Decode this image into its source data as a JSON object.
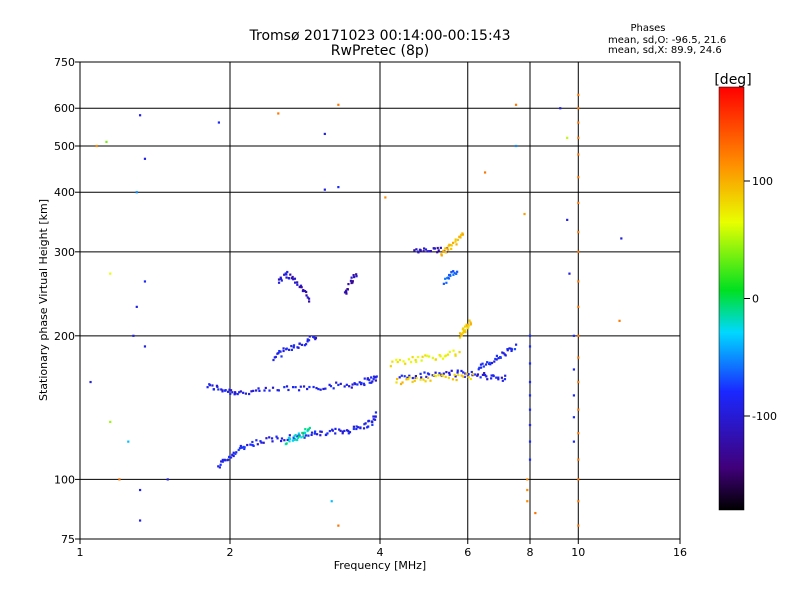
{
  "chart_data": {
    "type": "scatter",
    "title": "Tromsø 20171023 00:14:00-00:15:43",
    "subtitle": "RwPretec (8p)",
    "xlabel": "Frequency [MHz]",
    "ylabel": "Stationary phase Virtual Height [km]",
    "x_scale": "log",
    "y_scale": "log",
    "xlim": [
      1,
      16
    ],
    "ylim": [
      75,
      750
    ],
    "x_ticks": [
      1,
      2,
      4,
      6,
      8,
      10,
      16
    ],
    "y_ticks": [
      75,
      100,
      200,
      300,
      400,
      500,
      600,
      750
    ],
    "grid": true,
    "stats": {
      "heading": "Phases",
      "o_line": "mean, sd,O: -96.5, 21.6",
      "x_line": "mean, sd,X: 89.9, 24.6"
    },
    "colorbar": {
      "label": "[deg]",
      "range": [
        -180,
        180
      ],
      "ticks": [
        100,
        0,
        -100
      ]
    },
    "colors": {
      "blue": "#1a28ff",
      "navy": "#2a0bb0",
      "cyan": "#00c8e6",
      "green": "#18e018",
      "yellow": "#e6e600",
      "orange": "#ffa000",
      "red": "#e00000"
    },
    "series": [
      {
        "traces": [
          {
            "x": [
              1.8,
              1.9,
              2.0,
              2.1,
              2.3,
              2.6,
              2.9,
              3.2,
              3.5,
              3.7,
              3.85,
              3.95
            ],
            "y": [
              157,
              155,
              153,
              152,
              153,
              155,
              156,
              157,
              158,
              160,
              162,
              163
            ],
            "phase": -110
          },
          {
            "x": [
              1.9,
              1.97,
              2.05,
              2.15,
              2.3,
              2.5,
              2.7,
              2.9,
              3.1,
              3.3,
              3.5,
              3.7,
              3.85,
              3.95
            ],
            "y": [
              107,
              110,
              114,
              118,
              120,
              122,
              123,
              124,
              125,
              126,
              127,
              129,
              132,
              137
            ],
            "phase": -105
          },
          {
            "x": [
              2.45,
              2.55,
              2.7,
              2.85,
              3.0
            ],
            "y": [
              180,
              185,
              190,
              195,
              200
            ],
            "phase": -110
          },
          {
            "x": [
              2.5,
              2.6,
              2.7,
              2.8,
              2.9
            ],
            "y": [
              260,
              270,
              262,
              250,
              235
            ],
            "phase": -120
          },
          {
            "x": [
              3.4,
              3.5,
              3.6
            ],
            "y": [
              245,
              260,
              270
            ],
            "phase": -130
          },
          {
            "x": [
              4.4,
              4.8,
              5.2,
              5.6,
              6.0,
              6.4,
              6.8,
              7.2
            ],
            "y": [
              164,
              165,
              166,
              167,
              166,
              165,
              164,
              163
            ],
            "phase": -110
          },
          {
            "x": [
              6.3,
              6.6,
              6.9,
              7.2,
              7.5
            ],
            "y": [
              170,
              175,
              180,
              185,
              190
            ],
            "phase": -100
          },
          {
            "x": [
              4.7,
              4.95,
              5.2,
              5.5
            ],
            "y": [
              300,
              302,
              301,
              304
            ],
            "phase": -125
          },
          {
            "x": [
              5.4,
              5.55,
              5.7
            ],
            "y": [
              260,
              270,
              275
            ],
            "phase": -80
          },
          {
            "x": [
              4.2,
              4.6,
              5.0,
              5.4,
              5.8
            ],
            "y": [
              175,
              178,
              180,
              182,
              185
            ],
            "phase": 70
          },
          {
            "x": [
              4.3,
              4.7,
              5.2,
              5.7,
              6.2
            ],
            "y": [
              160,
              162,
              163,
              164,
              165
            ],
            "phase": 85
          },
          {
            "x": [
              5.3,
              5.5,
              5.7,
              5.9
            ],
            "y": [
              295,
              305,
              315,
              330
            ],
            "phase": 95
          },
          {
            "x": [
              5.8,
              5.9,
              6.0,
              6.1
            ],
            "y": [
              200,
              205,
              210,
              215
            ],
            "phase": 90
          },
          {
            "x": [
              2.6,
              2.7,
              2.8,
              2.9
            ],
            "y": [
              120,
              122,
              125,
              128
            ],
            "phase": -20
          }
        ],
        "points": [
          {
            "x": 1.08,
            "y": 500,
            "phase": 120
          },
          {
            "x": 1.13,
            "y": 510,
            "phase": 30
          },
          {
            "x": 1.15,
            "y": 270,
            "phase": 60
          },
          {
            "x": 1.32,
            "y": 580,
            "phase": -110
          },
          {
            "x": 1.35,
            "y": 470,
            "phase": -110
          },
          {
            "x": 1.3,
            "y": 400,
            "phase": -60
          },
          {
            "x": 1.35,
            "y": 260,
            "phase": -100
          },
          {
            "x": 1.3,
            "y": 230,
            "phase": -110
          },
          {
            "x": 1.28,
            "y": 200,
            "phase": -110
          },
          {
            "x": 1.35,
            "y": 190,
            "phase": -110
          },
          {
            "x": 1.05,
            "y": 160,
            "phase": -110
          },
          {
            "x": 1.15,
            "y": 132,
            "phase": 40
          },
          {
            "x": 1.25,
            "y": 120,
            "phase": -40
          },
          {
            "x": 1.2,
            "y": 100,
            "phase": 130
          },
          {
            "x": 1.32,
            "y": 95,
            "phase": -110
          },
          {
            "x": 1.32,
            "y": 82,
            "phase": -110
          },
          {
            "x": 1.5,
            "y": 100,
            "phase": -110
          },
          {
            "x": 1.9,
            "y": 560,
            "phase": -100
          },
          {
            "x": 2.5,
            "y": 585,
            "phase": 130
          },
          {
            "x": 3.1,
            "y": 530,
            "phase": -110
          },
          {
            "x": 3.3,
            "y": 610,
            "phase": 130
          },
          {
            "x": 3.1,
            "y": 405,
            "phase": -110
          },
          {
            "x": 3.3,
            "y": 410,
            "phase": -100
          },
          {
            "x": 3.2,
            "y": 90,
            "phase": -40
          },
          {
            "x": 3.3,
            "y": 80,
            "phase": 130
          },
          {
            "x": 4.1,
            "y": 390,
            "phase": 120
          },
          {
            "x": 6.5,
            "y": 440,
            "phase": 130
          },
          {
            "x": 7.5,
            "y": 610,
            "phase": 130
          },
          {
            "x": 7.5,
            "y": 500,
            "phase": -60
          },
          {
            "x": 7.8,
            "y": 360,
            "phase": 110
          },
          {
            "x": 8.0,
            "y": 130,
            "phase": 130
          },
          {
            "x": 8.2,
            "y": 85,
            "phase": 130
          },
          {
            "x": 9.2,
            "y": 600,
            "phase": -110
          },
          {
            "x": 9.5,
            "y": 520,
            "phase": 50
          },
          {
            "x": 9.5,
            "y": 350,
            "phase": -110
          },
          {
            "x": 9.6,
            "y": 270,
            "phase": -110
          },
          {
            "x": 12.2,
            "y": 320,
            "phase": -110
          },
          {
            "x": 12.1,
            "y": 215,
            "phase": 130
          }
        ],
        "columns": [
          {
            "x": 10.0,
            "y": [
              80,
              90,
              100,
              110,
              125,
              140,
              160,
              180,
              200,
              230,
              260,
              300,
              330,
              380,
              430,
              480,
              520,
              560,
              600,
              640
            ],
            "phase": 130
          },
          {
            "x": 9.8,
            "y": [
              120,
              135,
              150,
              170,
              200
            ],
            "phase": -100
          },
          {
            "x": 8.0,
            "y": [
              110,
              120,
              130,
              140,
              150,
              160,
              175,
              190,
              200
            ],
            "phase": -100
          },
          {
            "x": 7.9,
            "y": [
              90,
              95,
              100
            ],
            "phase": 120
          }
        ]
      }
    ]
  }
}
